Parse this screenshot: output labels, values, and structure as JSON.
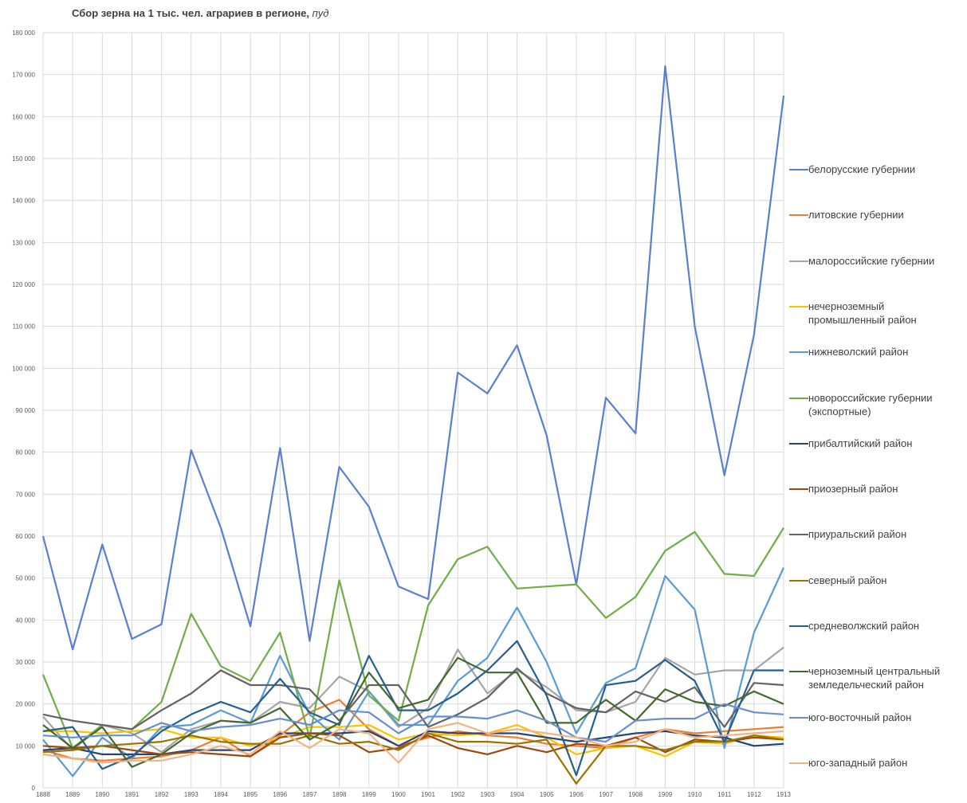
{
  "chart_data": {
    "type": "line",
    "title": "Сбор зерна на 1 тыс. чел. аграриев в регионе,",
    "title_unit": "пуд",
    "x": [
      1888,
      1889,
      1890,
      1891,
      1892,
      1893,
      1894,
      1895,
      1896,
      1897,
      1898,
      1899,
      1900,
      1901,
      1902,
      1903,
      1904,
      1905,
      1906,
      1907,
      1908,
      1909,
      1910,
      1911,
      1912,
      1913
    ],
    "xlim": [
      1888,
      1913
    ],
    "ylim": [
      0,
      180000
    ],
    "yticks": [
      0,
      {
        "value": 10000,
        "label": "10 000"
      },
      {
        "value": 20000,
        "label": "20 000"
      },
      {
        "value": 30000,
        "label": "30 000"
      },
      {
        "value": 40000,
        "label": "40 000"
      },
      {
        "value": 50000,
        "label": "50 000"
      },
      {
        "value": 60000,
        "label": "60 000"
      },
      {
        "value": 70000,
        "label": "70 000"
      },
      {
        "value": 80000,
        "label": "80 000"
      },
      {
        "value": 90000,
        "label": "90 000"
      },
      {
        "value": 100000,
        "label": "100 000"
      },
      {
        "value": 110000,
        "label": "110 000"
      },
      {
        "value": 120000,
        "label": "120 000"
      },
      {
        "value": 130000,
        "label": "130 000"
      },
      {
        "value": 140000,
        "label": "140 000"
      },
      {
        "value": 150000,
        "label": "150 000"
      },
      {
        "value": 160000,
        "label": "160 000"
      },
      {
        "value": 170000,
        "label": "170 000"
      },
      {
        "value": 180000,
        "label": "180 000"
      }
    ],
    "grid": true,
    "legend": "right",
    "series": [
      {
        "name": "белорусские губернии",
        "color": "#5b7fd0",
        "values": [
          60000,
          33000,
          58000,
          35500,
          39000,
          80500,
          62000,
          38500,
          81000,
          35000,
          76500,
          67000,
          48000,
          45000,
          99000,
          94000,
          105500,
          84000,
          48500,
          93000,
          84500,
          172000,
          110000,
          74500,
          108000,
          165000
        ]
      },
      {
        "name": "литовские губернии",
        "color": "#ed7d31",
        "values": [
          9000,
          7000,
          6500,
          7000,
          7500,
          9000,
          12000,
          7500,
          12500,
          18000,
          21000,
          14000,
          10000,
          12000,
          13500,
          12500,
          12000,
          10500,
          10000,
          9500,
          12000,
          14000,
          13000,
          13500,
          14000,
          14500
        ]
      },
      {
        "name": "малороссийские губернии",
        "color": "#a5a5a5",
        "values": [
          17000,
          9000,
          15000,
          13000,
          8500,
          14000,
          16000,
          15500,
          20500,
          19000,
          26500,
          23000,
          14500,
          19000,
          33000,
          22500,
          28000,
          24000,
          18500,
          18000,
          20500,
          31000,
          27000,
          28000,
          28000,
          33500
        ]
      },
      {
        "name": "нечерноземный промышленный район",
        "color": "#ffc000",
        "values": [
          13500,
          13500,
          13000,
          13500,
          14000,
          12000,
          12000,
          10000,
          12000,
          14500,
          14500,
          15000,
          11500,
          13000,
          12500,
          13000,
          15000,
          12000,
          8000,
          9500,
          10000,
          7500,
          11000,
          10500,
          12500,
          12000
        ]
      },
      {
        "name": "нижневолский район",
        "color": "#5b9bd5",
        "values": [
          11500,
          2800,
          12000,
          7000,
          14500,
          15000,
          18500,
          15500,
          31500,
          17500,
          11500,
          23000,
          15000,
          15000,
          25500,
          31000,
          43000,
          30000,
          13000,
          25000,
          28500,
          50500,
          42500,
          9500,
          37000,
          52500
        ]
      },
      {
        "name": "новороссийские губернии (экспортные)",
        "color": "#70ad47",
        "values": [
          27000,
          9500,
          15000,
          14000,
          20500,
          41500,
          29000,
          25500,
          37000,
          12000,
          49500,
          22000,
          16000,
          43500,
          54500,
          57500,
          47500,
          48000,
          48500,
          40500,
          45500,
          56500,
          61000,
          51000,
          50500,
          62000
        ]
      },
      {
        "name": "прибалтийский район",
        "color": "#264478",
        "values": [
          9000,
          9500,
          8000,
          8000,
          8000,
          9000,
          9000,
          9000,
          13000,
          13000,
          13000,
          13500,
          10000,
          13500,
          13000,
          13000,
          13000,
          12000,
          11000,
          12000,
          13000,
          13500,
          12500,
          12000,
          10000,
          10500
        ]
      },
      {
        "name": "приозерный район",
        "color": "#9e480e",
        "values": [
          10000,
          9500,
          10000,
          9000,
          8000,
          8500,
          8000,
          7500,
          12000,
          13000,
          12500,
          8500,
          9500,
          12500,
          9500,
          8000,
          10000,
          8500,
          10500,
          10000,
          12000,
          8500,
          11500,
          11000,
          12000,
          11500
        ]
      },
      {
        "name": "приуральский район",
        "color": "#636363",
        "values": [
          17500,
          16000,
          15000,
          14000,
          18500,
          22500,
          28000,
          24500,
          24500,
          23500,
          16000,
          24500,
          24500,
          14500,
          17500,
          21500,
          28500,
          22500,
          19000,
          18000,
          23000,
          20500,
          24000,
          14500,
          25000,
          24500
        ]
      },
      {
        "name": "северный район",
        "color": "#997300",
        "values": [
          8500,
          9000,
          10000,
          10500,
          11000,
          12500,
          11000,
          10500,
          10500,
          12500,
          10500,
          11000,
          9000,
          13000,
          11000,
          11000,
          10500,
          11500,
          1000,
          10000,
          10000,
          9000,
          11000,
          11000,
          12500,
          11500
        ]
      },
      {
        "name": "средневолжский район",
        "color": "#255e91",
        "values": [
          13500,
          14500,
          4500,
          7500,
          13500,
          17500,
          20500,
          18000,
          26000,
          18000,
          15000,
          31500,
          18500,
          18500,
          22500,
          28000,
          35000,
          22000,
          3000,
          24500,
          25500,
          30500,
          25500,
          11000,
          28000,
          28000
        ]
      },
      {
        "name": "черноземный центральный земледельческий район",
        "color": "#43682b",
        "values": [
          15000,
          9500,
          14500,
          5000,
          8000,
          13000,
          16000,
          15500,
          19000,
          11500,
          15500,
          27500,
          19000,
          21000,
          31000,
          27500,
          27500,
          15500,
          15500,
          21000,
          16000,
          23500,
          20500,
          19500,
          23000,
          20000
        ]
      },
      {
        "name": "юго-восточный район",
        "color": "#698ed0",
        "values": [
          12500,
          12000,
          12500,
          12500,
          15500,
          13500,
          14500,
          15000,
          16500,
          15000,
          18500,
          18000,
          13000,
          17000,
          17000,
          16500,
          18500,
          16000,
          12000,
          11000,
          16000,
          16500,
          16500,
          20000,
          18000,
          17500
        ]
      },
      {
        "name": "юго-западный район",
        "color": "#f4b183",
        "values": [
          8000,
          7000,
          6000,
          6500,
          6500,
          8000,
          10000,
          8000,
          13500,
          9500,
          14000,
          13000,
          6000,
          14000,
          15500,
          13000,
          14000,
          13000,
          12000,
          10000,
          11000,
          14000,
          12000,
          12500,
          13000,
          13500
        ]
      }
    ]
  }
}
